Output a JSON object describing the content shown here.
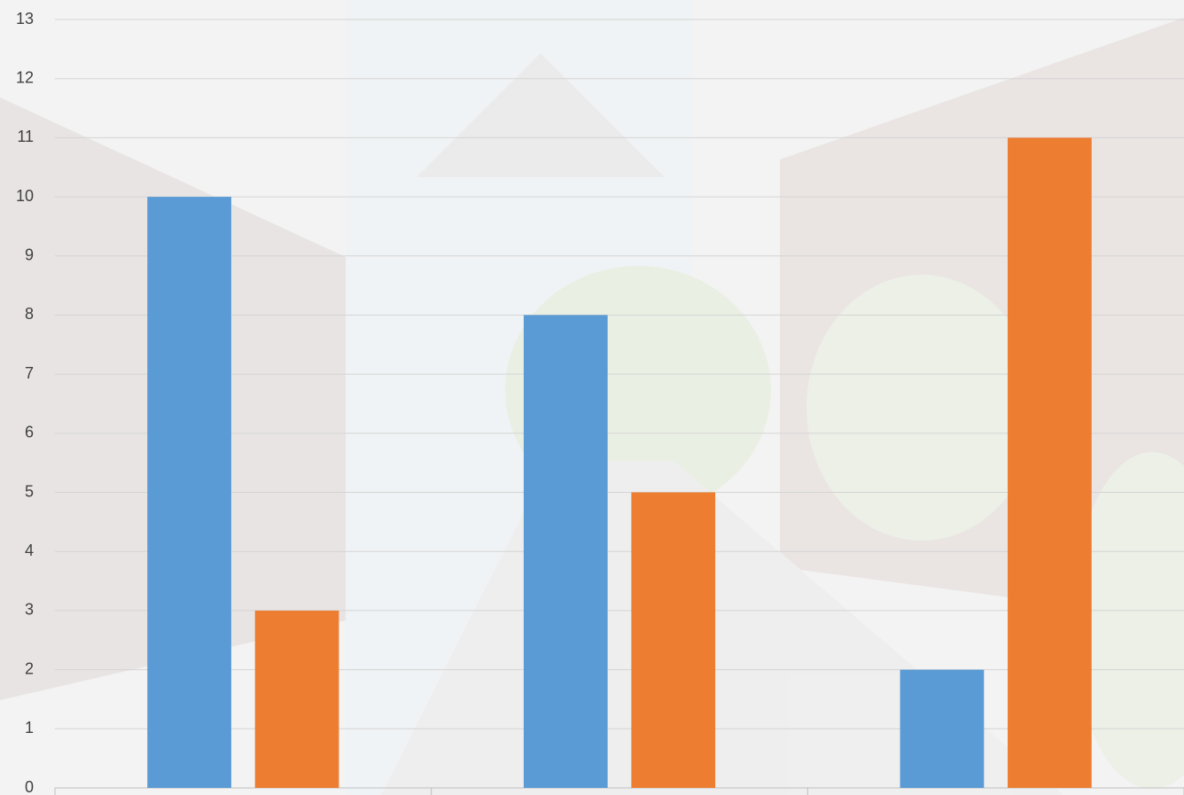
{
  "chart_data": {
    "type": "bar",
    "categories": [
      null,
      null,
      null
    ],
    "series": [
      {
        "color": "#5b9bd5",
        "values": [
          10,
          8,
          2
        ]
      },
      {
        "color": "#ed7d31",
        "values": [
          3,
          5,
          11
        ]
      }
    ],
    "ylim": [
      0,
      13
    ],
    "yticks": [
      0,
      1,
      2,
      3,
      4,
      5,
      6,
      7,
      8,
      9,
      10,
      11,
      12,
      13
    ],
    "grid": true
  }
}
